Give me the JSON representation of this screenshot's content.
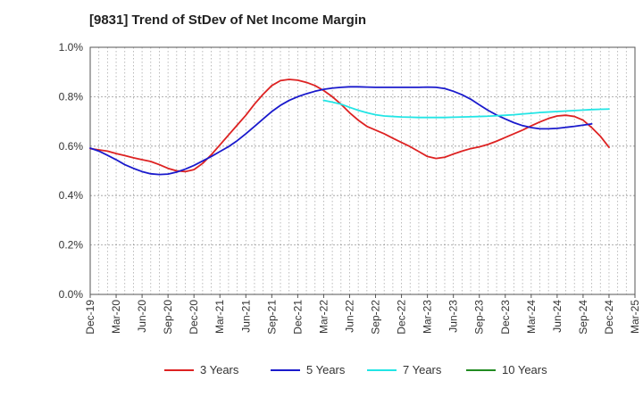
{
  "chart_data": {
    "type": "line",
    "title": "[9831]  Trend of StDev of Net Income Margin",
    "xlabel": "",
    "ylabel": "",
    "x_tick_labels": [
      "Dec-19",
      "Mar-20",
      "Jun-20",
      "Sep-20",
      "Dec-20",
      "Mar-21",
      "Jun-21",
      "Sep-21",
      "Dec-21",
      "Mar-22",
      "Jun-22",
      "Sep-22",
      "Dec-22",
      "Mar-23",
      "Jun-23",
      "Sep-23",
      "Dec-23",
      "Mar-24",
      "Jun-24",
      "Sep-24",
      "Dec-24",
      "Mar-25"
    ],
    "y_tick_labels": [
      "0.0%",
      "0.2%",
      "0.4%",
      "0.6%",
      "0.8%",
      "1.0%"
    ],
    "ylim": [
      0,
      1.0
    ],
    "grid": true,
    "legend_position": "bottom",
    "series": [
      {
        "name": "3 Years",
        "color": "#dd2222",
        "points": [
          [
            "Dec-19",
            0.59
          ],
          [
            "Jan-20",
            0.585
          ],
          [
            "Feb-20",
            0.58
          ],
          [
            "Mar-20",
            0.57
          ],
          [
            "Apr-20",
            0.562
          ],
          [
            "May-20",
            0.553
          ],
          [
            "Jun-20",
            0.545
          ],
          [
            "Jul-20",
            0.538
          ],
          [
            "Aug-20",
            0.525
          ],
          [
            "Sep-20",
            0.51
          ],
          [
            "Oct-20",
            0.5
          ],
          [
            "Nov-20",
            0.497
          ],
          [
            "Dec-20",
            0.505
          ],
          [
            "Jan-21",
            0.53
          ],
          [
            "Feb-21",
            0.565
          ],
          [
            "Mar-21",
            0.605
          ],
          [
            "Apr-21",
            0.645
          ],
          [
            "May-21",
            0.685
          ],
          [
            "Jun-21",
            0.725
          ],
          [
            "Jul-21",
            0.77
          ],
          [
            "Aug-21",
            0.81
          ],
          [
            "Sep-21",
            0.845
          ],
          [
            "Oct-21",
            0.865
          ],
          [
            "Nov-21",
            0.87
          ],
          [
            "Dec-21",
            0.867
          ],
          [
            "Jan-22",
            0.858
          ],
          [
            "Feb-22",
            0.845
          ],
          [
            "Mar-22",
            0.825
          ],
          [
            "Apr-22",
            0.8
          ],
          [
            "May-22",
            0.77
          ],
          [
            "Jun-22",
            0.735
          ],
          [
            "Jul-22",
            0.705
          ],
          [
            "Aug-22",
            0.68
          ],
          [
            "Sep-22",
            0.665
          ],
          [
            "Oct-22",
            0.65
          ],
          [
            "Nov-22",
            0.632
          ],
          [
            "Dec-22",
            0.615
          ],
          [
            "Jan-23",
            0.598
          ],
          [
            "Feb-23",
            0.578
          ],
          [
            "Mar-23",
            0.558
          ],
          [
            "Apr-23",
            0.55
          ],
          [
            "May-23",
            0.555
          ],
          [
            "Jun-23",
            0.568
          ],
          [
            "Jul-23",
            0.58
          ],
          [
            "Aug-23",
            0.59
          ],
          [
            "Sep-23",
            0.597
          ],
          [
            "Oct-23",
            0.607
          ],
          [
            "Nov-23",
            0.62
          ],
          [
            "Dec-23",
            0.635
          ],
          [
            "Jan-24",
            0.65
          ],
          [
            "Feb-24",
            0.665
          ],
          [
            "Mar-24",
            0.682
          ],
          [
            "Apr-24",
            0.698
          ],
          [
            "May-24",
            0.712
          ],
          [
            "Jun-24",
            0.722
          ],
          [
            "Jul-24",
            0.725
          ],
          [
            "Aug-24",
            0.72
          ],
          [
            "Sep-24",
            0.705
          ],
          [
            "Oct-24",
            0.675
          ],
          [
            "Nov-24",
            0.64
          ],
          [
            "Dec-24",
            0.595
          ]
        ]
      },
      {
        "name": "5 Years",
        "color": "#1a1acc",
        "points": [
          [
            "Dec-19",
            0.592
          ],
          [
            "Jan-20",
            0.58
          ],
          [
            "Feb-20",
            0.563
          ],
          [
            "Mar-20",
            0.545
          ],
          [
            "Apr-20",
            0.525
          ],
          [
            "May-20",
            0.51
          ],
          [
            "Jun-20",
            0.497
          ],
          [
            "Jul-20",
            0.488
          ],
          [
            "Aug-20",
            0.485
          ],
          [
            "Sep-20",
            0.487
          ],
          [
            "Oct-20",
            0.495
          ],
          [
            "Nov-20",
            0.507
          ],
          [
            "Dec-20",
            0.522
          ],
          [
            "Jan-21",
            0.54
          ],
          [
            "Feb-21",
            0.558
          ],
          [
            "Mar-21",
            0.578
          ],
          [
            "Apr-21",
            0.598
          ],
          [
            "May-21",
            0.622
          ],
          [
            "Jun-21",
            0.65
          ],
          [
            "Jul-21",
            0.68
          ],
          [
            "Aug-21",
            0.71
          ],
          [
            "Sep-21",
            0.74
          ],
          [
            "Oct-21",
            0.765
          ],
          [
            "Nov-21",
            0.785
          ],
          [
            "Dec-21",
            0.8
          ],
          [
            "Jan-22",
            0.812
          ],
          [
            "Feb-22",
            0.822
          ],
          [
            "Mar-22",
            0.83
          ],
          [
            "Apr-22",
            0.835
          ],
          [
            "May-22",
            0.838
          ],
          [
            "Jun-22",
            0.84
          ],
          [
            "Jul-22",
            0.84
          ],
          [
            "Aug-22",
            0.839
          ],
          [
            "Sep-22",
            0.838
          ],
          [
            "Oct-22",
            0.838
          ],
          [
            "Nov-22",
            0.838
          ],
          [
            "Dec-22",
            0.838
          ],
          [
            "Jan-23",
            0.838
          ],
          [
            "Feb-23",
            0.838
          ],
          [
            "Mar-23",
            0.839
          ],
          [
            "Apr-23",
            0.838
          ],
          [
            "May-23",
            0.833
          ],
          [
            "Jun-23",
            0.822
          ],
          [
            "Jul-23",
            0.808
          ],
          [
            "Aug-23",
            0.79
          ],
          [
            "Sep-23",
            0.767
          ],
          [
            "Oct-23",
            0.745
          ],
          [
            "Nov-23",
            0.726
          ],
          [
            "Dec-23",
            0.71
          ],
          [
            "Jan-24",
            0.695
          ],
          [
            "Feb-24",
            0.683
          ],
          [
            "Mar-24",
            0.675
          ],
          [
            "Apr-24",
            0.67
          ],
          [
            "May-24",
            0.67
          ],
          [
            "Jun-24",
            0.672
          ],
          [
            "Jul-24",
            0.676
          ],
          [
            "Aug-24",
            0.68
          ],
          [
            "Sep-24",
            0.685
          ],
          [
            "Oct-24",
            0.69
          ]
        ]
      },
      {
        "name": "7 Years",
        "color": "#22e5e5",
        "points": [
          [
            "Mar-22",
            0.785
          ],
          [
            "Apr-22",
            0.778
          ],
          [
            "May-22",
            0.77
          ],
          [
            "Jun-22",
            0.757
          ],
          [
            "Jul-22",
            0.745
          ],
          [
            "Aug-22",
            0.735
          ],
          [
            "Sep-22",
            0.727
          ],
          [
            "Oct-22",
            0.722
          ],
          [
            "Nov-22",
            0.72
          ],
          [
            "Dec-22",
            0.718
          ],
          [
            "Jan-23",
            0.717
          ],
          [
            "Feb-23",
            0.716
          ],
          [
            "Mar-23",
            0.716
          ],
          [
            "Apr-23",
            0.716
          ],
          [
            "May-23",
            0.716
          ],
          [
            "Jun-23",
            0.717
          ],
          [
            "Jul-23",
            0.718
          ],
          [
            "Aug-23",
            0.719
          ],
          [
            "Sep-23",
            0.72
          ],
          [
            "Oct-23",
            0.721
          ],
          [
            "Nov-23",
            0.723
          ],
          [
            "Dec-23",
            0.725
          ],
          [
            "Jan-24",
            0.727
          ],
          [
            "Feb-24",
            0.73
          ],
          [
            "Mar-24",
            0.733
          ],
          [
            "Apr-24",
            0.736
          ],
          [
            "May-24",
            0.738
          ],
          [
            "Jun-24",
            0.74
          ],
          [
            "Jul-24",
            0.742
          ],
          [
            "Aug-24",
            0.744
          ],
          [
            "Sep-24",
            0.746
          ],
          [
            "Oct-24",
            0.748
          ],
          [
            "Nov-24",
            0.749
          ],
          [
            "Dec-24",
            0.75
          ]
        ]
      },
      {
        "name": "10 Years",
        "color": "#228b22",
        "points": []
      }
    ]
  }
}
